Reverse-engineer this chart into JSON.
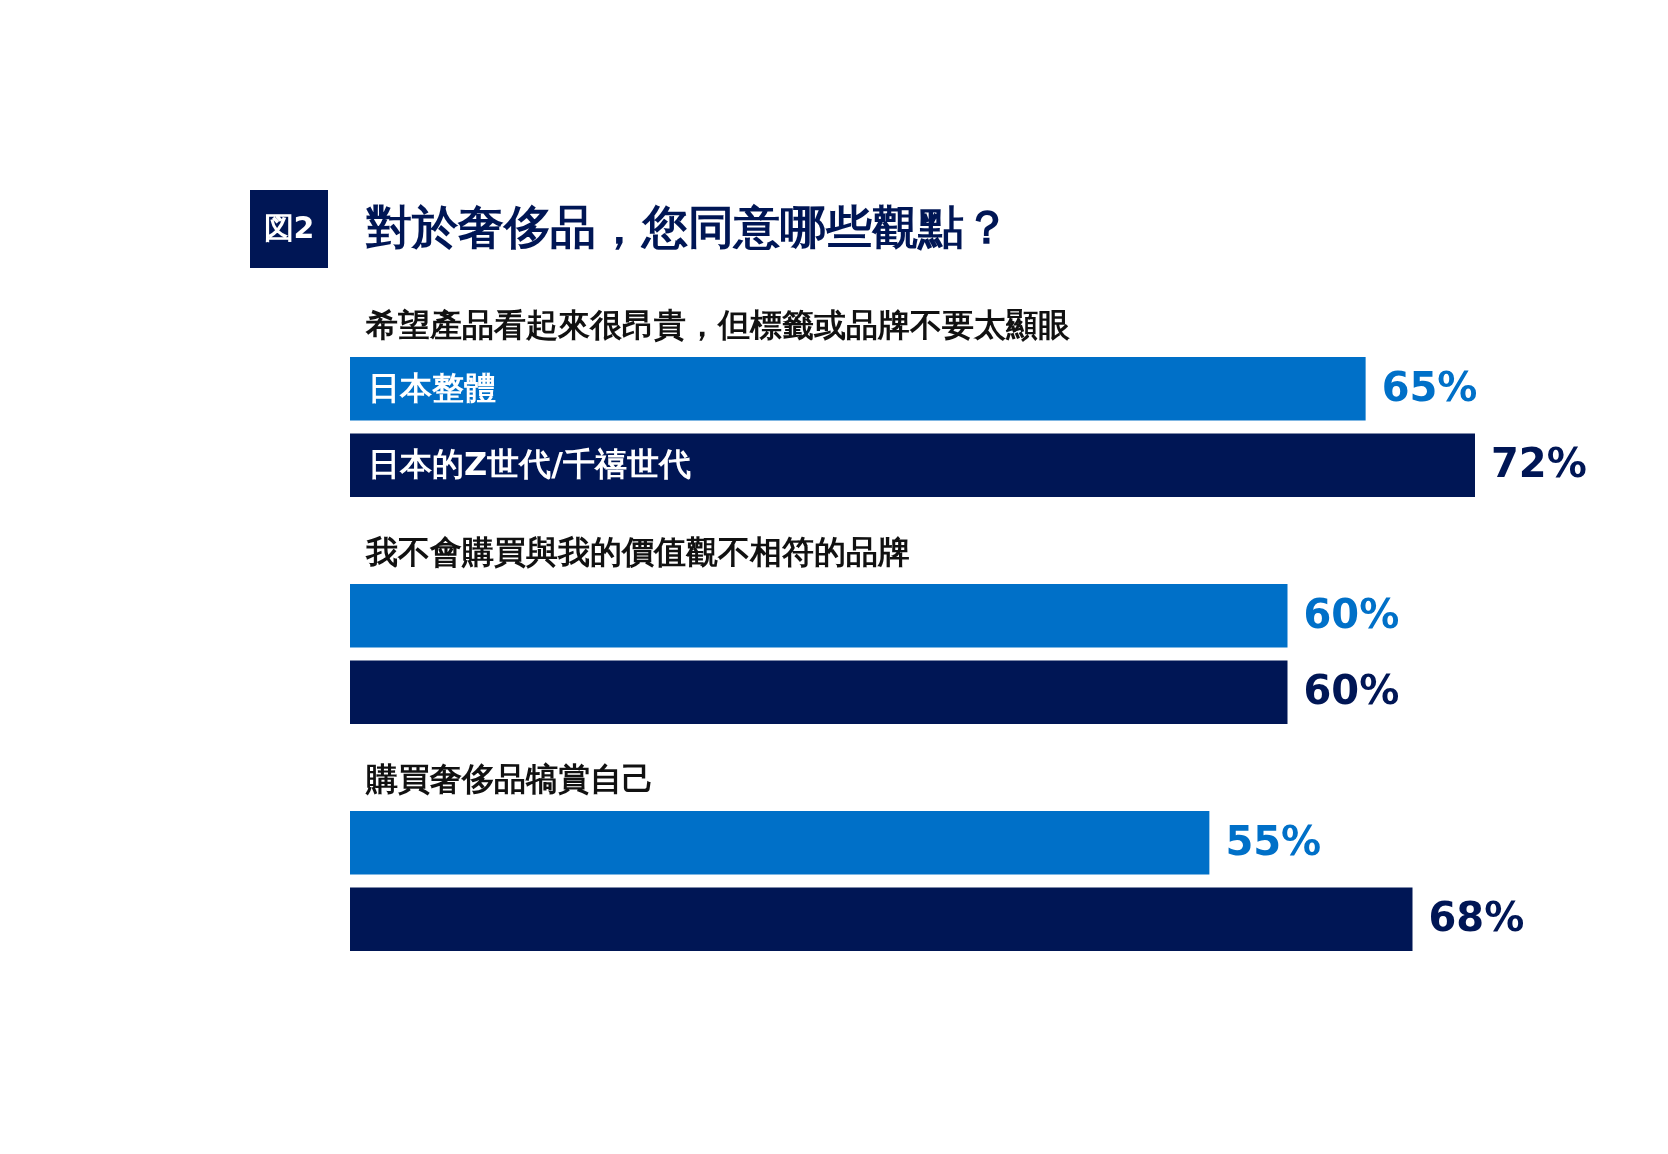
{
  "chart_data": {
    "type": "bar",
    "orientation": "horizontal",
    "title": "對於奢侈品，您同意哪些觀點？",
    "annotations": [
      "図2"
    ],
    "categories": [
      "希望產品看起來很昂貴，但標籤或品牌不要太顯眼",
      "我不會購買與我的價值觀不相符的品牌",
      "購買奢侈品犒賞自己"
    ],
    "series": [
      {
        "name": "日本整體",
        "color": "#0070c8",
        "values": [
          65,
          60,
          55
        ],
        "value_labels": [
          "65%",
          "60%",
          "55%"
        ]
      },
      {
        "name": "日本的Z世代/千禧世代",
        "color": "#001655",
        "values": [
          72,
          60,
          68
        ],
        "value_labels": [
          "72%",
          "60%",
          "68%"
        ]
      }
    ],
    "tick_labels": false,
    "legend": "left"
  }
}
